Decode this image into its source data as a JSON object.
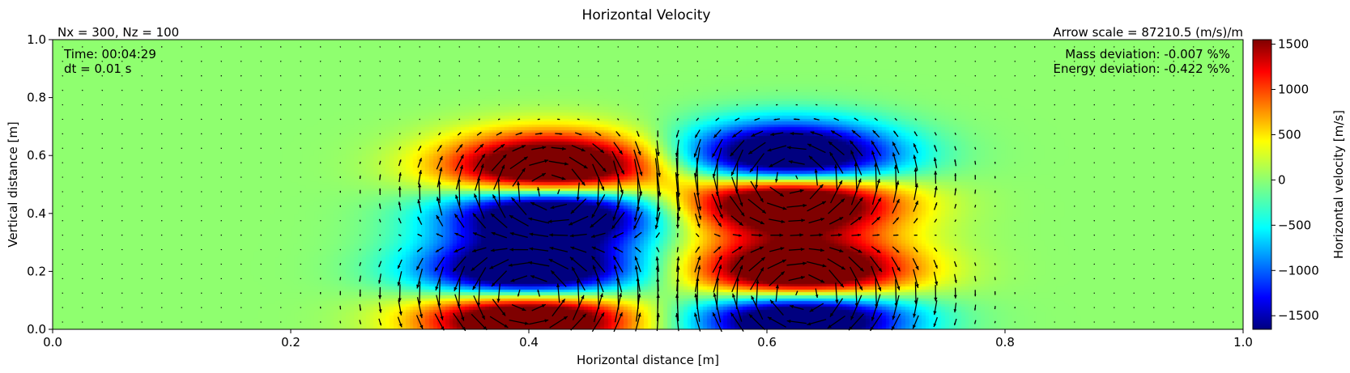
{
  "chart_data": {
    "type": "heatmap",
    "title": "Horizontal Velocity",
    "grid_label": "Nx = 300, Nz = 100",
    "arrow_scale_label": "Arrow scale = 87210.5 (m/s)/m",
    "time_label": "Time: 00:04:29",
    "dt_label": "dt = 0.01 s",
    "mass_label": "Mass deviation: -0.007 %%",
    "energy_label": "Energy deviation: -0.422 %%",
    "xlabel": "Horizontal distance [m]",
    "ylabel": "Vertical distance [m]",
    "xlim": [
      0.0,
      1.0
    ],
    "ylim": [
      0.0,
      1.0
    ],
    "xticks": [
      "0.0",
      "0.2",
      "0.4",
      "0.6",
      "0.8",
      "1.0"
    ],
    "yticks": [
      "0.0",
      "0.2",
      "0.4",
      "0.6",
      "0.8",
      "1.0"
    ],
    "colorbar": {
      "label": "Horizontal velocity [m/s]",
      "range": [
        -1650,
        1550
      ],
      "ticks": [
        "1500",
        "1000",
        "500",
        "0",
        "−500",
        "−1000",
        "−1500"
      ],
      "tick_values": [
        1500,
        1000,
        500,
        0,
        -500,
        -1000,
        -1500
      ],
      "colormap": "jet"
    },
    "vortices": [
      {
        "x": 0.42,
        "y": 0.48,
        "sign": -1
      },
      {
        "x": 0.62,
        "y": 0.52,
        "sign": 1
      },
      {
        "x": 0.4,
        "y": 0.12,
        "sign": 1
      },
      {
        "x": 0.63,
        "y": 0.12,
        "sign": -1
      }
    ]
  }
}
